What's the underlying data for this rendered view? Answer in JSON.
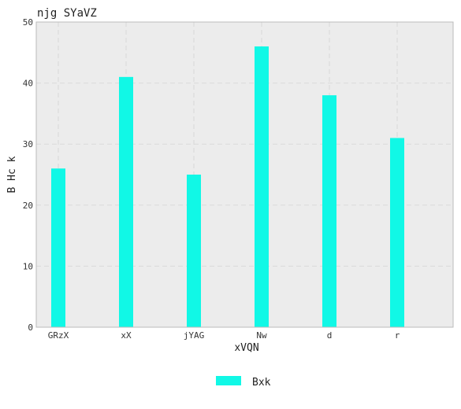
{
  "chart_data": {
    "type": "bar",
    "title": "njg SYaVZ",
    "xlabel": "xVQN",
    "ylabel": "B Hc k",
    "categories": [
      "GRzX",
      "xX",
      "jYAG",
      "Nw",
      "d",
      "r"
    ],
    "series": [
      {
        "name": "Bxk",
        "values": [
          26,
          41,
          25,
          46,
          38,
          31
        ],
        "color": "#11f8e6"
      }
    ],
    "ylim": [
      0,
      50
    ],
    "yticks": [
      0,
      10,
      20,
      30,
      40,
      50
    ],
    "grid": true,
    "legend_position": "bottom-center",
    "plot_background": "#ececec",
    "grid_color": "#d9d9d9"
  }
}
